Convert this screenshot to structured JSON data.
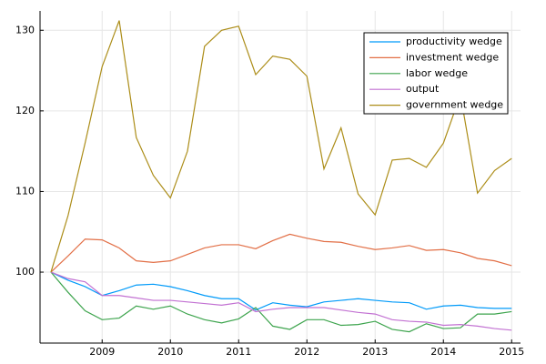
{
  "chart_data": {
    "type": "line",
    "x": [
      2008.25,
      2008.5,
      2008.75,
      2009.0,
      2009.25,
      2009.5,
      2009.75,
      2010.0,
      2010.25,
      2010.5,
      2010.75,
      2011.0,
      2011.25,
      2011.5,
      2011.75,
      2012.0,
      2012.25,
      2012.5,
      2012.75,
      2013.0,
      2013.25,
      2013.5,
      2013.75,
      2014.0,
      2014.25,
      2014.5,
      2014.75,
      2015.0
    ],
    "series": [
      {
        "name": "productivity wedge",
        "color": "#009af9",
        "values": [
          100,
          99,
          98.2,
          97.1,
          97.7,
          98.4,
          98.5,
          98.2,
          97.7,
          97.1,
          96.7,
          96.7,
          95.3,
          96.2,
          95.9,
          95.7,
          96.3,
          96.5,
          96.7,
          96.5,
          96.3,
          96.2,
          95.4,
          95.8,
          95.9,
          95.6,
          95.5,
          95.5
        ]
      },
      {
        "name": "investment wedge",
        "color": "#e26f46",
        "values": [
          100,
          102,
          104.1,
          104,
          103,
          101.4,
          101.2,
          101.4,
          102.2,
          103,
          103.4,
          103.4,
          102.9,
          103.9,
          104.7,
          104.2,
          103.8,
          103.7,
          103.2,
          102.8,
          103,
          103.3,
          102.7,
          102.8,
          102.4,
          101.7,
          101.4,
          100.8
        ]
      },
      {
        "name": "labor wedge",
        "color": "#3da44d",
        "values": [
          100,
          97.5,
          95.2,
          94.1,
          94.3,
          95.8,
          95.4,
          95.8,
          94.8,
          94.1,
          93.7,
          94.2,
          95.6,
          93.3,
          92.9,
          94.1,
          94.1,
          93.4,
          93.5,
          93.9,
          92.9,
          92.6,
          93.6,
          93,
          93.1,
          94.8,
          94.8,
          95.1
        ]
      },
      {
        "name": "output",
        "color": "#c271d2",
        "values": [
          100,
          99.2,
          98.8,
          97.1,
          97.1,
          96.8,
          96.5,
          96.5,
          96.3,
          96.1,
          95.9,
          96.2,
          95.1,
          95.4,
          95.6,
          95.6,
          95.6,
          95.3,
          95,
          94.8,
          94.1,
          93.9,
          93.8,
          93.4,
          93.5,
          93.3,
          93,
          92.8
        ]
      },
      {
        "name": "government wedge",
        "color": "#ac8d18",
        "values": [
          100,
          107,
          116,
          125.5,
          131.2,
          116.7,
          112,
          109.2,
          115,
          128,
          130,
          130.5,
          124.5,
          126.8,
          126.4,
          124.3,
          112.8,
          117.9,
          109.7,
          107.1,
          113.9,
          114.1,
          113,
          116,
          122,
          109.8,
          112.6,
          114.1
        ]
      }
    ],
    "xlim": [
      2008.09,
      2015.13
    ],
    "xticks": [
      2009,
      2010,
      2011,
      2012,
      2013,
      2014,
      2015
    ],
    "ylim": [
      91.2,
      132.4
    ],
    "yticks": [
      100,
      110,
      120,
      130
    ],
    "grid": true,
    "legend": "top-right"
  }
}
